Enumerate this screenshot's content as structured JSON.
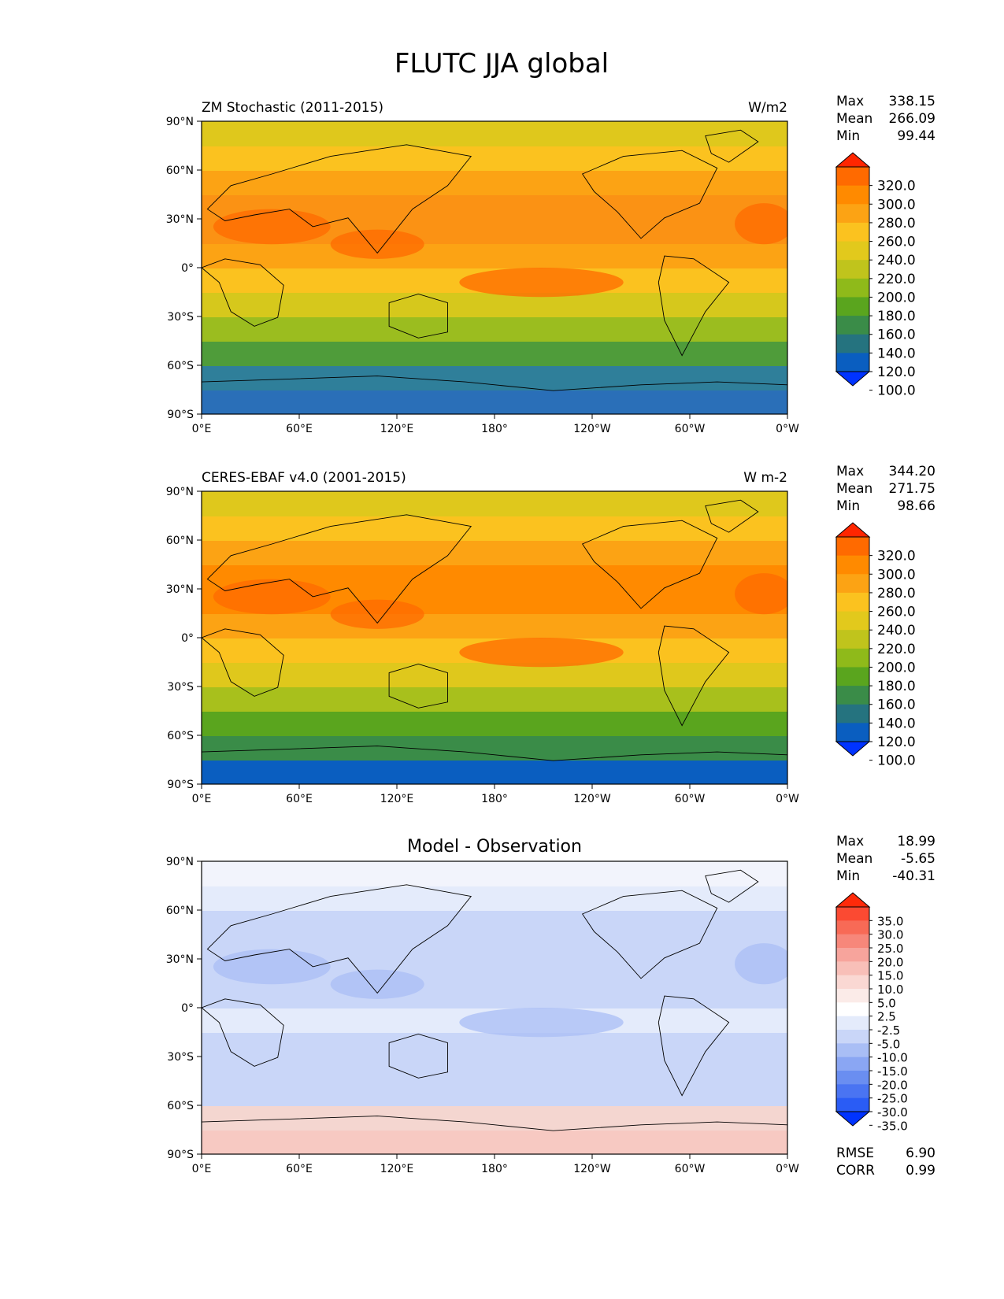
{
  "title": "FLUTC JJA global",
  "axes": {
    "lat_labels": [
      "90°N",
      "60°N",
      "30°N",
      "0°",
      "30°S",
      "60°S",
      "90°S"
    ],
    "lon_labels": [
      "0°E",
      "60°E",
      "120°E",
      "180°",
      "120°W",
      "60°W",
      "0°W"
    ]
  },
  "panels": [
    {
      "id": "model",
      "left_title": "ZM Stochastic (2011-2015)",
      "right_title": "W/m2",
      "center_title": "",
      "stats": [
        {
          "label": "Max",
          "value": "338.15"
        },
        {
          "label": "Mean",
          "value": "266.09"
        },
        {
          "label": "Min",
          "value": "99.44"
        }
      ],
      "colorbar": {
        "labels": [
          "320.0",
          "300.0",
          "280.0",
          "260.0",
          "240.0",
          "220.0",
          "200.0",
          "180.0",
          "160.0",
          "140.0",
          "120.0",
          "100.0"
        ],
        "colors": [
          "#ff2600",
          "#ff6a00",
          "#ff8a00",
          "#fca314",
          "#fbc21f",
          "#e2c91c",
          "#c0c41c",
          "#8fba1a",
          "#5aa51e",
          "#3a8c48",
          "#25737f",
          "#0a5ec0",
          "#0033ff"
        ]
      },
      "bottom_stats": []
    },
    {
      "id": "obs",
      "left_title": "CERES-EBAF v4.0 (2001-2015)",
      "right_title": "W m-2",
      "center_title": "",
      "stats": [
        {
          "label": "Max",
          "value": "344.20"
        },
        {
          "label": "Mean",
          "value": "271.75"
        },
        {
          "label": "Min",
          "value": "98.66"
        }
      ],
      "colorbar": {
        "labels": [
          "320.0",
          "300.0",
          "280.0",
          "260.0",
          "240.0",
          "220.0",
          "200.0",
          "180.0",
          "160.0",
          "140.0",
          "120.0",
          "100.0"
        ],
        "colors": [
          "#ff2600",
          "#ff6a00",
          "#ff8a00",
          "#fca314",
          "#fbc21f",
          "#e2c91c",
          "#c0c41c",
          "#8fba1a",
          "#5aa51e",
          "#3a8c48",
          "#25737f",
          "#0a5ec0",
          "#0033ff"
        ]
      },
      "bottom_stats": []
    },
    {
      "id": "diff",
      "left_title": "",
      "right_title": "",
      "center_title": "Model - Observation",
      "stats": [
        {
          "label": "Max",
          "value": "18.99"
        },
        {
          "label": "Mean",
          "value": "-5.65"
        },
        {
          "label": "Min",
          "value": "-40.31"
        }
      ],
      "colorbar": {
        "labels": [
          "35.0",
          "30.0",
          "25.0",
          "20.0",
          "15.0",
          "10.0",
          "5.0",
          "2.5",
          "-2.5",
          "-5.0",
          "-10.0",
          "-15.0",
          "-20.0",
          "-25.0",
          "-30.0",
          "-35.0"
        ],
        "colors": [
          "#ff2a0a",
          "#fb4a32",
          "#f86a56",
          "#f7877a",
          "#f7a49c",
          "#f8bfb8",
          "#fad8d3",
          "#fbebe8",
          "#ffffff",
          "#e4ebfb",
          "#c9d6f8",
          "#a9bef5",
          "#8aa6f3",
          "#6a8ef1",
          "#4a74f2",
          "#2a5cf5",
          "#0033ff"
        ]
      },
      "bottom_stats": [
        {
          "label": "RMSE",
          "value": "6.90"
        },
        {
          "label": "CORR",
          "value": "0.99"
        }
      ]
    }
  ],
  "map_palettes": {
    "model": {
      "bands": [
        "#2a6fb8",
        "#2f7f9a",
        "#4f9c3a",
        "#9bbd1f",
        "#d6c81c",
        "#fbc21f",
        "#fca314",
        "#fb9214",
        "#fb9214",
        "#fca314",
        "#fbc21f",
        "#dfc81c"
      ],
      "hot": "#ff6a00"
    },
    "obs": {
      "bands": [
        "#0a5ec0",
        "#3a8c48",
        "#5aa51e",
        "#a8c01c",
        "#dfc81c",
        "#fbc21f",
        "#fca314",
        "#ff8a00",
        "#ff8a00",
        "#fca314",
        "#fbc21f",
        "#dfc81c"
      ],
      "hot": "#ff6a00"
    },
    "diff": {
      "bands": [
        "#f7c9c2",
        "#f4d6d0",
        "#c9d6f8",
        "#c9d6f8",
        "#c9d6f8",
        "#e4ebfb",
        "#c9d6f8",
        "#c9d6f8",
        "#c9d6f8",
        "#c9d6f8",
        "#e4ebfb",
        "#f2f4fc"
      ],
      "hot": "#a9bef5"
    }
  }
}
